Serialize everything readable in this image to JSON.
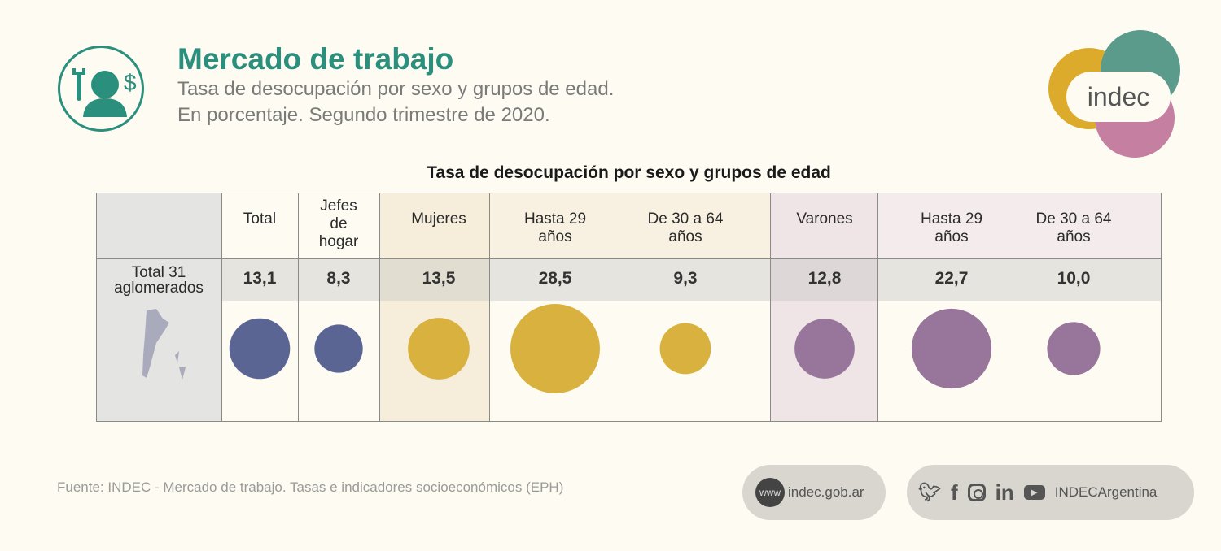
{
  "header": {
    "title": "Mercado de trabajo",
    "subtitle_line1": "Tasa de desocupación por sexo y grupos de edad.",
    "subtitle_line2": "En porcentaje. Segundo trimestre de 2020.",
    "icon": "worker-wrench-dollar-icon",
    "logo_text": "indec"
  },
  "colors": {
    "accent": "#2a8f7c",
    "total": "#5a6594",
    "mujeres": "#d9b13f",
    "varones": "#98759a"
  },
  "chart_data": {
    "type": "bubble-table",
    "title": "Tasa de desocupación por sexo y grupos de edad",
    "row_label": "Total 31 aglomerados",
    "columns": [
      {
        "label": "Total",
        "value": 13.1,
        "display": "13,1",
        "group": "total"
      },
      {
        "label": "Jefes de hogar",
        "value": 8.3,
        "display": "8,3",
        "group": "total"
      },
      {
        "label": "Mujeres",
        "value": 13.5,
        "display": "13,5",
        "group": "mujeres"
      },
      {
        "label": "Hasta 29 años",
        "value": 28.5,
        "display": "28,5",
        "group": "mujeres"
      },
      {
        "label": "De 30 a 64 años",
        "value": 9.3,
        "display": "9,3",
        "group": "mujeres"
      },
      {
        "label": "Varones",
        "value": 12.8,
        "display": "12,8",
        "group": "varones"
      },
      {
        "label": "Hasta 29 años",
        "value": 22.7,
        "display": "22,7",
        "group": "varones"
      },
      {
        "label": "De 30 a 64 años",
        "value": 10.0,
        "display": "10,0",
        "group": "varones"
      }
    ]
  },
  "footer": {
    "source": "Fuente: INDEC - Mercado de trabajo. Tasas e indicadores socioeconómicos (EPH)",
    "www_badge": "www",
    "website": "indec.gob.ar",
    "social_handle": "INDECArgentina",
    "social_icons": [
      "twitter-icon",
      "facebook-icon",
      "instagram-icon",
      "linkedin-icon",
      "youtube-icon"
    ]
  }
}
